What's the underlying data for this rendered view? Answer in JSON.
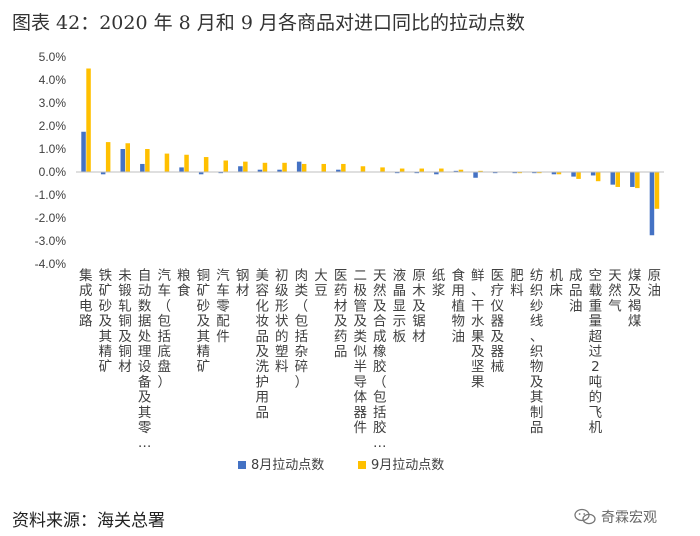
{
  "title": "图表 42：2020 年 8 月和 9 月各商品对进口同比的拉动点数",
  "source": "资料来源：海关总署",
  "watermark": "奇霖宏观",
  "colors": {
    "series1": "#4472C4",
    "series2": "#FFC000",
    "axis": "#bfbfbf",
    "text": "#404040"
  },
  "chart_data": {
    "type": "bar",
    "categories": [
      "集成电路",
      "铁矿砂及其精矿",
      "未锻轧铜及铜材",
      "自动数据处理设备及其零…",
      "汽车（包括底盘）",
      "粮食",
      "铜矿砂及其精矿",
      "汽车零配件",
      "钢材",
      "美容化妆品及洗护用品",
      "初级形状的塑料",
      "肉类（包括杂碎）",
      "大豆",
      "医药材及药品",
      "二极管及类似半导体器件",
      "天然及合成橡胶（包括胶…",
      "液晶显示板",
      "原木及锯材",
      "纸浆",
      "食用植物油",
      "鲜、干水果及坚果",
      "医疗仪器及器械",
      "肥料",
      "纺织纱线、织物及其制品",
      "机床",
      "成品油",
      "空载重量超过2吨的飞机",
      "天然气",
      "煤及褐煤",
      "原油"
    ],
    "series": [
      {
        "name": "8月拉动点数",
        "values": [
          1.75,
          -0.1,
          1.0,
          0.35,
          0.0,
          0.2,
          -0.1,
          -0.05,
          0.25,
          0.1,
          0.1,
          0.45,
          0.0,
          0.1,
          0.0,
          0.0,
          -0.05,
          -0.05,
          -0.1,
          0.05,
          -0.25,
          -0.05,
          -0.05,
          -0.05,
          -0.1,
          -0.2,
          -0.15,
          -0.55,
          -0.65,
          -2.75
        ]
      },
      {
        "name": "9月拉动点数",
        "values": [
          4.5,
          1.3,
          1.25,
          1.0,
          0.8,
          0.75,
          0.65,
          0.5,
          0.45,
          0.4,
          0.4,
          0.35,
          0.35,
          0.35,
          0.25,
          0.2,
          0.15,
          0.15,
          0.15,
          0.1,
          0.05,
          0.0,
          -0.05,
          -0.05,
          -0.1,
          -0.3,
          -0.4,
          -0.65,
          -0.7,
          -1.6
        ]
      }
    ],
    "ylim": [
      -4.0,
      5.0
    ],
    "yticks": [
      "5.0%",
      "4.0%",
      "3.0%",
      "2.0%",
      "1.0%",
      "0.0%",
      "-1.0%",
      "-2.0%",
      "-3.0%",
      "-4.0%"
    ],
    "ytick_values": [
      5,
      4,
      3,
      2,
      1,
      0,
      -1,
      -2,
      -3,
      -4
    ],
    "legend_position": "bottom",
    "grid": false
  }
}
